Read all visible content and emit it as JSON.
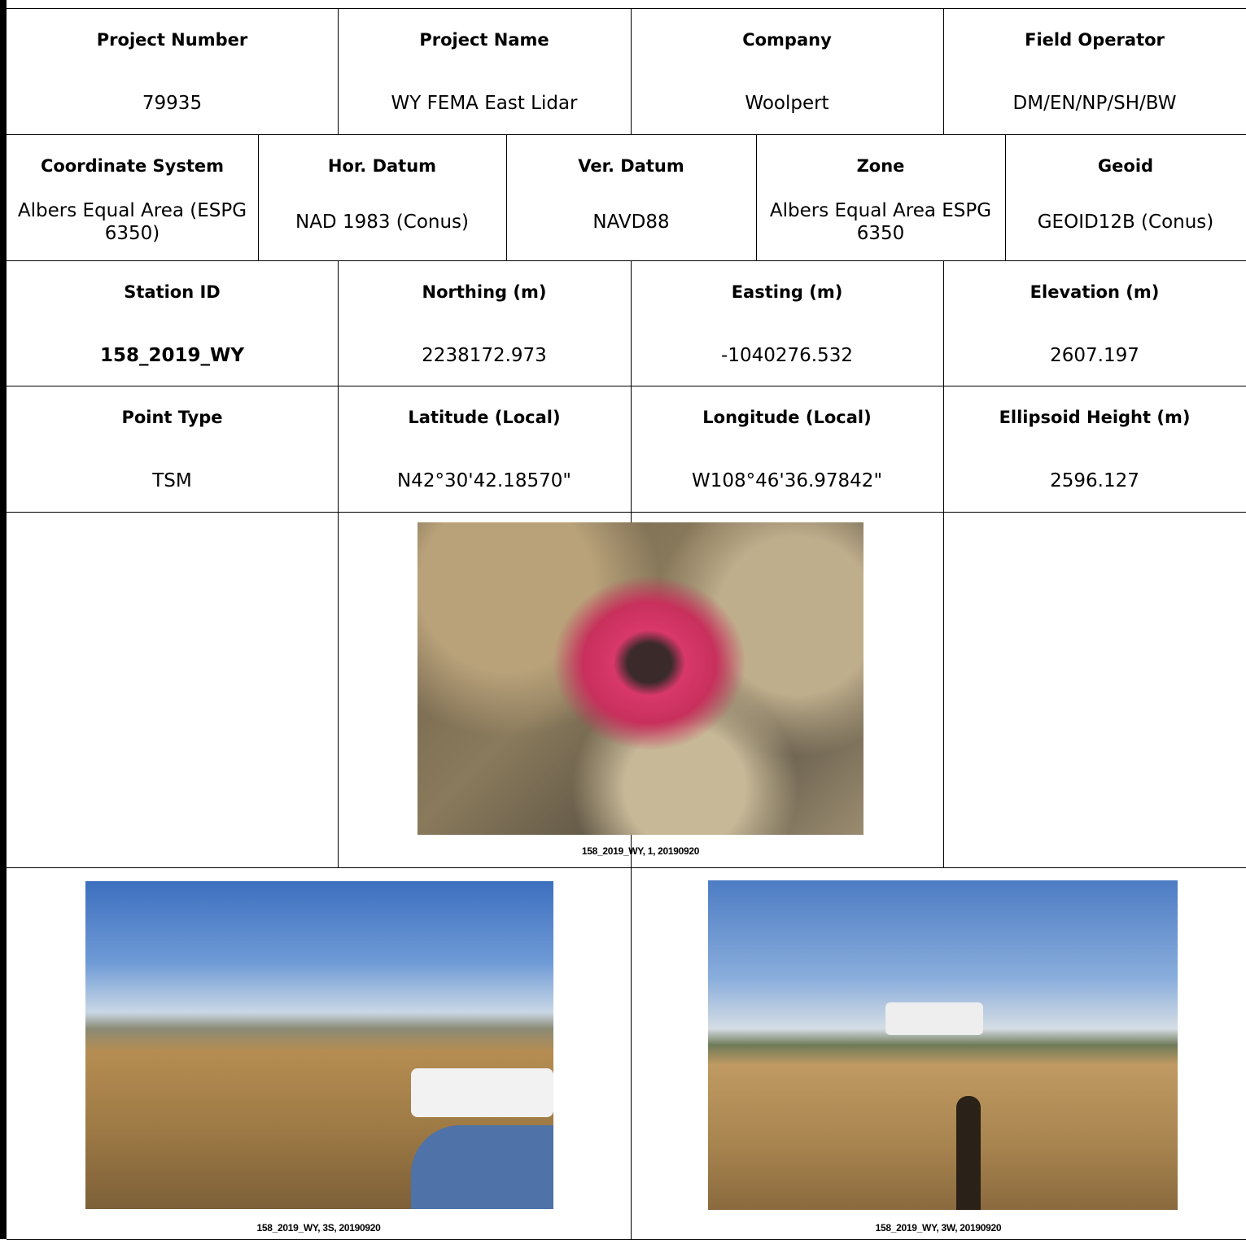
{
  "table": {
    "rows": [
      [
        {
          "header": "Project Number",
          "value": "79935"
        },
        {
          "header": "Project Name",
          "value": "WY FEMA East Lidar"
        },
        {
          "header": "Company",
          "value": "Woolpert"
        },
        {
          "header": "Field Operator",
          "value": "DM/EN/NP/SH/BW"
        }
      ],
      [
        {
          "header": "Coordinate System",
          "value": "Albers Equal Area (ESPG 6350)"
        },
        {
          "header": "Hor. Datum",
          "value": "NAD 1983 (Conus)"
        },
        {
          "header": "Ver. Datum",
          "value": "NAVD88"
        },
        {
          "header": "Zone",
          "value": "Albers Equal Area ESPG 6350"
        },
        {
          "header": "Geoid",
          "value": "GEOID12B (Conus)"
        }
      ],
      [
        {
          "header": "Station ID",
          "value": "158_2019_WY"
        },
        {
          "header": "Northing (m)",
          "value": "2238172.973"
        },
        {
          "header": "Easting (m)",
          "value": "-1040276.532"
        },
        {
          "header": "Elevation (m)",
          "value": "2607.197"
        }
      ],
      [
        {
          "header": "Point Type",
          "value": "TSM"
        },
        {
          "header": "Latitude (Local)",
          "value": "N42°30'42.18570\""
        },
        {
          "header": "Longitude (Local)",
          "value": "W108°46'36.97842\""
        },
        {
          "header": "Ellipsoid Height (m)",
          "value": "2596.127"
        }
      ]
    ]
  },
  "photos": [
    {
      "caption": "158_2019_WY, 1, 20190920"
    },
    {
      "caption": "158_2019_WY, 3S, 20190920"
    },
    {
      "caption": "158_2019_WY, 3W, 20190920"
    }
  ]
}
